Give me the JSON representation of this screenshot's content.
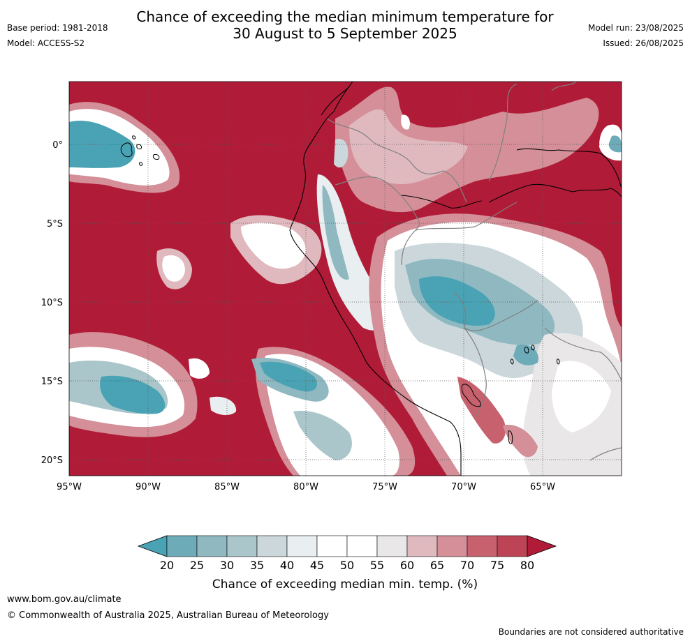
{
  "title_line1": "Chance of exceeding the median minimum temperature for",
  "title_line2": "30 August to 5 September 2025",
  "base_period": "Base period: 1981-2018",
  "model": "Model: ACCESS-S2",
  "model_run": "Model run: 23/08/2025",
  "issued": "Issued: 26/08/2025",
  "lat_labels": [
    "0°",
    "5°S",
    "10°S",
    "15°S",
    "20°S"
  ],
  "lon_labels": [
    "95°W",
    "90°W",
    "85°W",
    "80°W",
    "75°W",
    "70°W",
    "65°W"
  ],
  "colorbar": {
    "ticks": [
      "20",
      "25",
      "30",
      "35",
      "40",
      "45",
      "50",
      "55",
      "60",
      "65",
      "70",
      "75",
      "80"
    ],
    "colors": [
      "#4aa3b4",
      "#6eabb8",
      "#8fb8c1",
      "#aac6cb",
      "#cbd7db",
      "#e9eef0",
      "#ffffff",
      "#ffffff",
      "#e9e7e8",
      "#e0b9bf",
      "#d48f98",
      "#c8616e",
      "#bd4454",
      "#b01c38"
    ],
    "title": "Chance of exceeding median min. temp. (%)"
  },
  "footer_url": "www.bom.gov.au/climate",
  "copyright": "© Commonwealth of Australia 2025, Australian Bureau of Meteorology",
  "disclaimer": "Boundaries are not considered authoritative"
}
